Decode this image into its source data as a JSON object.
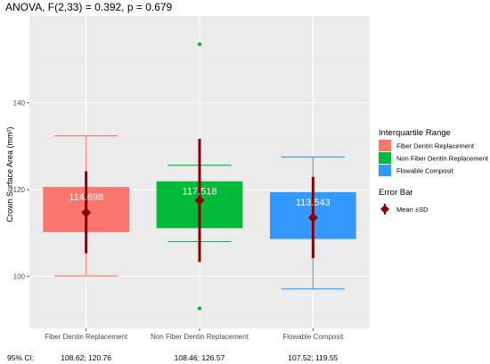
{
  "chart_data": {
    "type": "box",
    "title": "ANOVA, F(2,33) = 0.392, p = 0.679",
    "ylabel": "Crown Surface Area (mm²)",
    "xlabel": "",
    "ylim": [
      88,
      160
    ],
    "yticks": [
      100,
      120,
      140
    ],
    "grid": true,
    "categories": [
      "Fiber Dentin Replacement",
      "Non Fiber Dentin Replacement",
      "Flowable Composit"
    ],
    "series": [
      {
        "name": "Fiber Dentin Replacement",
        "color": "#F8766D",
        "q1": 110.2,
        "q3": 120.6,
        "whisker_low": 100.1,
        "whisker_high": 132.4,
        "mean": 114.698,
        "sd_low": 105.3,
        "sd_high": 124.2,
        "outliers": [],
        "mean_label": "114.698",
        "ci": "108.62; 120.76"
      },
      {
        "name": "Non Fiber Dentin Replacement",
        "color": "#00BA38",
        "q1": 111.1,
        "q3": 121.9,
        "whisker_low": 108.0,
        "whisker_high": 125.6,
        "mean": 117.518,
        "sd_low": 103.3,
        "sd_high": 131.7,
        "outliers": [
          92.6,
          153.5
        ],
        "mean_label": "117.518",
        "ci": "108.46; 126.57"
      },
      {
        "name": "Flowable Composit",
        "color": "#3399FF",
        "q1": 108.6,
        "q3": 119.4,
        "whisker_low": 97.1,
        "whisker_high": 127.5,
        "mean": 113.543,
        "sd_low": 104.2,
        "sd_high": 122.9,
        "outliers": [],
        "mean_label": "113.543",
        "ci": "107.52; 119.55"
      }
    ],
    "ci_label": "95% CI:",
    "legend": {
      "position": "right",
      "fill_title": "Interquartile Range",
      "errorbar_title": "Error Bar",
      "errorbar_label": "Mean ±SD",
      "errorbar_color": "#8B0000"
    }
  }
}
